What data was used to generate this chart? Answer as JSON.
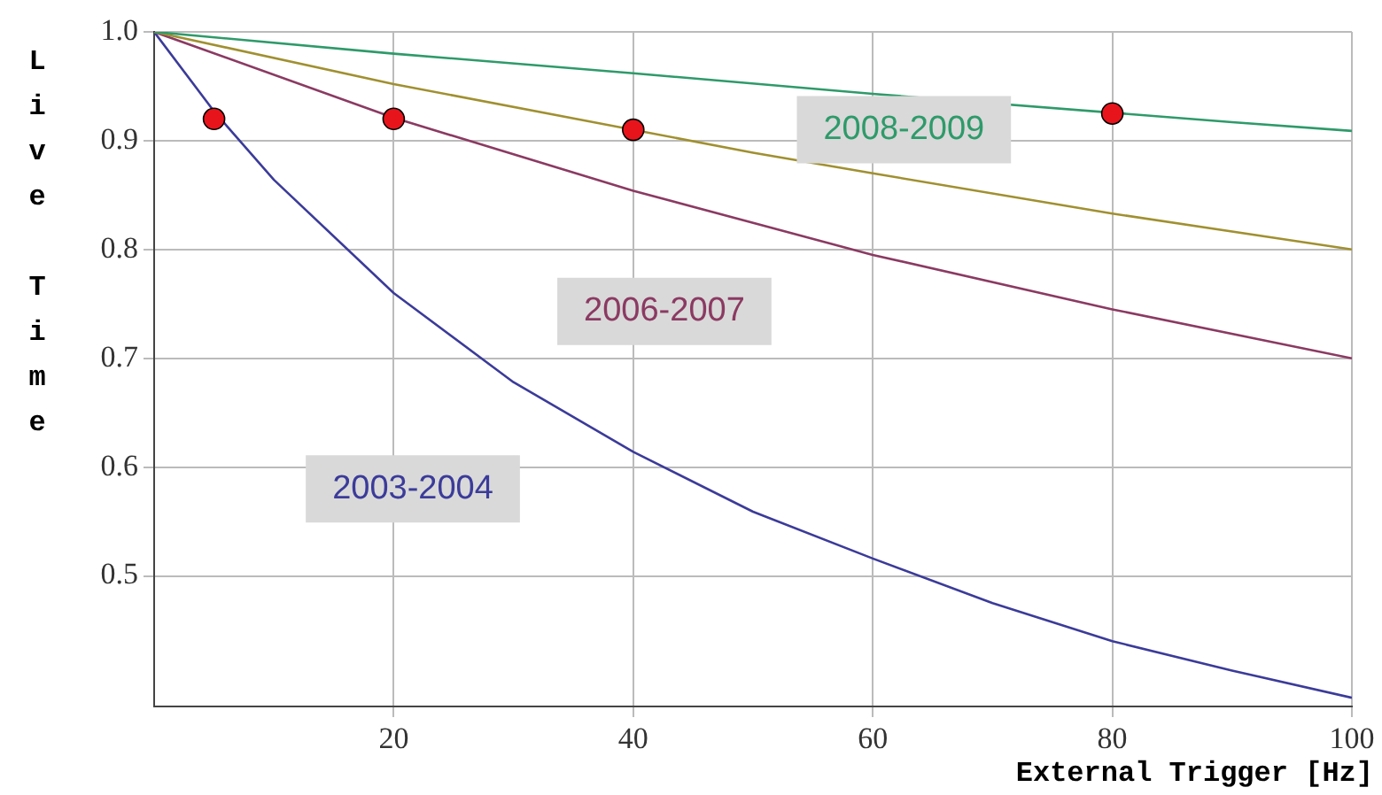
{
  "chart_data": {
    "type": "line",
    "xlabel": "External Trigger [Hz]",
    "ylabel": "Live Time",
    "xlim": [
      0,
      100
    ],
    "ylim": [
      0.38,
      1.0
    ],
    "xticks": [
      20,
      40,
      60,
      80,
      100
    ],
    "yticks": [
      {
        "value": 0.5,
        "label": "0.5"
      },
      {
        "value": 0.6,
        "label": "0.6"
      },
      {
        "value": 0.7,
        "label": "0.7"
      },
      {
        "value": 0.8,
        "label": "0.8"
      },
      {
        "value": 0.9,
        "label": "0.9"
      },
      {
        "value": 1,
        "label": "1.0"
      }
    ],
    "grid": true,
    "legend": false,
    "line_style": "solid",
    "series": [
      {
        "name": "2008-2009",
        "color": "#2e9a6a",
        "x": [
          0,
          20,
          40,
          60,
          90,
          100
        ],
        "values": [
          1.0,
          0.98,
          0.962,
          0.943,
          0.917,
          0.909
        ]
      },
      {
        "color": "#a09030",
        "x": [
          0,
          20,
          50,
          60,
          80,
          100
        ],
        "values": [
          1.0,
          0.952,
          0.889,
          0.87,
          0.833,
          0.8
        ]
      },
      {
        "name": "2006-2007",
        "color": "#8b3a62",
        "x": [
          0,
          20,
          40,
          60,
          80,
          100
        ],
        "values": [
          1.0,
          0.921,
          0.854,
          0.795,
          0.745,
          0.7
        ]
      },
      {
        "name": "2003-2004",
        "color": "#3b3b9a",
        "x": [
          0,
          5,
          10,
          20,
          30,
          40,
          50,
          60,
          70,
          80,
          90,
          100
        ],
        "values": [
          1.0,
          0.927,
          0.864,
          0.76,
          0.678,
          0.614,
          0.559,
          0.516,
          0.475,
          0.44,
          0.413,
          0.388
        ]
      },
      {
        "type": "scatter",
        "marker": "circle",
        "color": "#e8141c",
        "x": [
          5,
          20,
          40,
          80
        ],
        "values": [
          0.92,
          0.92,
          0.91,
          0.925
        ]
      }
    ]
  }
}
